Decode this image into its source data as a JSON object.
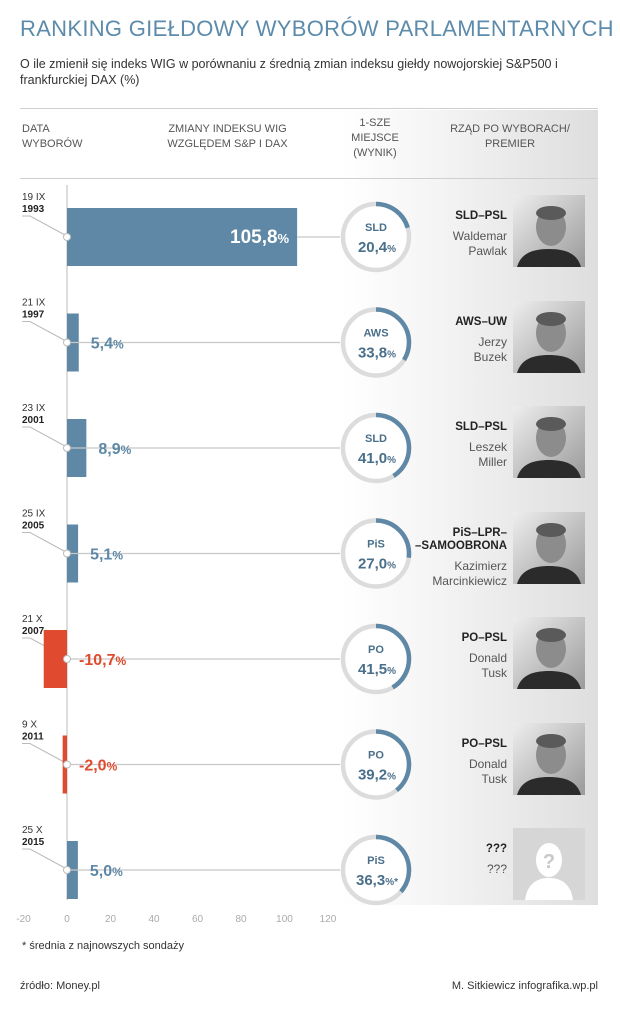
{
  "title": "RANKING GIEŁDOWY WYBORÓW PARLAMENTARNYCH",
  "subtitle": "O ile zmienił się indeks WIG w porównaniu z średnią zmian indeksu giełdy nowojorskiej S&P500 i frankfurckiej DAX (%)",
  "headers": {
    "date": [
      "DATA",
      "WYBORÓW"
    ],
    "wig": [
      "ZMIANY INDEKSU WIG",
      "WZGLĘDEM S&P I DAX"
    ],
    "first": [
      "1-SZE",
      "MIEJSCE",
      "(WYNIK)"
    ],
    "govt": [
      "RZĄD PO WYBORACH/",
      "PREMIER"
    ]
  },
  "colors": {
    "positive": "#5e88a5",
    "negative": "#e04a2e",
    "ring": "#dcdcdc",
    "title": "#5d8bab"
  },
  "chart_data": {
    "type": "bar",
    "orientation": "horizontal",
    "title": "RANKING GIEŁDOWY WYBORÓW PARLAMENTARNYCH",
    "xlabel": "ZMIANY INDEKSU WIG WZGLĘDEM S&P I DAX",
    "xlim": [
      -20,
      120
    ],
    "xticks": [
      -20,
      0,
      20,
      40,
      60,
      80,
      100,
      120
    ],
    "rows": [
      {
        "date": "19 IX",
        "year": "1993",
        "value": 105.8,
        "label": "105,8",
        "winner": "SLD",
        "pct": 20.4,
        "pct_label": "20,4",
        "pct_suffix": "%",
        "govt": [
          "SLD–PSL"
        ],
        "pm": [
          "Waldemar",
          "Pawlak"
        ],
        "photo": "portrait"
      },
      {
        "date": "21 IX",
        "year": "1997",
        "value": 5.4,
        "label": "5,4",
        "winner": "AWS",
        "pct": 33.8,
        "pct_label": "33,8",
        "pct_suffix": "%",
        "govt": [
          "AWS–UW"
        ],
        "pm": [
          "Jerzy",
          "Buzek"
        ],
        "photo": "portrait"
      },
      {
        "date": "23 IX",
        "year": "2001",
        "value": 8.9,
        "label": "8,9",
        "winner": "SLD",
        "pct": 41.0,
        "pct_label": "41,0",
        "pct_suffix": "%",
        "govt": [
          "SLD–PSL"
        ],
        "pm": [
          "Leszek",
          "Miller"
        ],
        "photo": "portrait"
      },
      {
        "date": "25 IX",
        "year": "2005",
        "value": 5.1,
        "label": "5,1",
        "winner": "PiS",
        "pct": 27.0,
        "pct_label": "27,0",
        "pct_suffix": "%",
        "govt": [
          "PiS–LPR–",
          "–SAMOOBRONA"
        ],
        "pm": [
          "Kazimierz",
          "Marcinkiewicz"
        ],
        "photo": "portrait"
      },
      {
        "date": "21 X",
        "year": "2007",
        "value": -10.7,
        "label": "-10,7",
        "winner": "PO",
        "pct": 41.5,
        "pct_label": "41,5",
        "pct_suffix": "%",
        "govt": [
          "PO–PSL"
        ],
        "pm": [
          "Donald",
          "Tusk"
        ],
        "photo": "portrait"
      },
      {
        "date": "9 X",
        "year": "2011",
        "value": -2.0,
        "label": "-2,0",
        "winner": "PO",
        "pct": 39.2,
        "pct_label": "39,2",
        "pct_suffix": "%",
        "govt": [
          "PO–PSL"
        ],
        "pm": [
          "Donald",
          "Tusk"
        ],
        "photo": "portrait"
      },
      {
        "date": "25 X",
        "year": "2015",
        "value": 5.0,
        "label": "5,0",
        "winner": "PiS",
        "pct": 36.3,
        "pct_label": "36,3",
        "pct_suffix": "%*",
        "govt": [
          "???"
        ],
        "pm": [
          "???"
        ],
        "photo": "unknown"
      }
    ]
  },
  "footnote": "* średnia z najnowszych sondaży",
  "source": "źródło: Money.pl",
  "credit": "M. Sitkiewicz infografika.wp.pl"
}
